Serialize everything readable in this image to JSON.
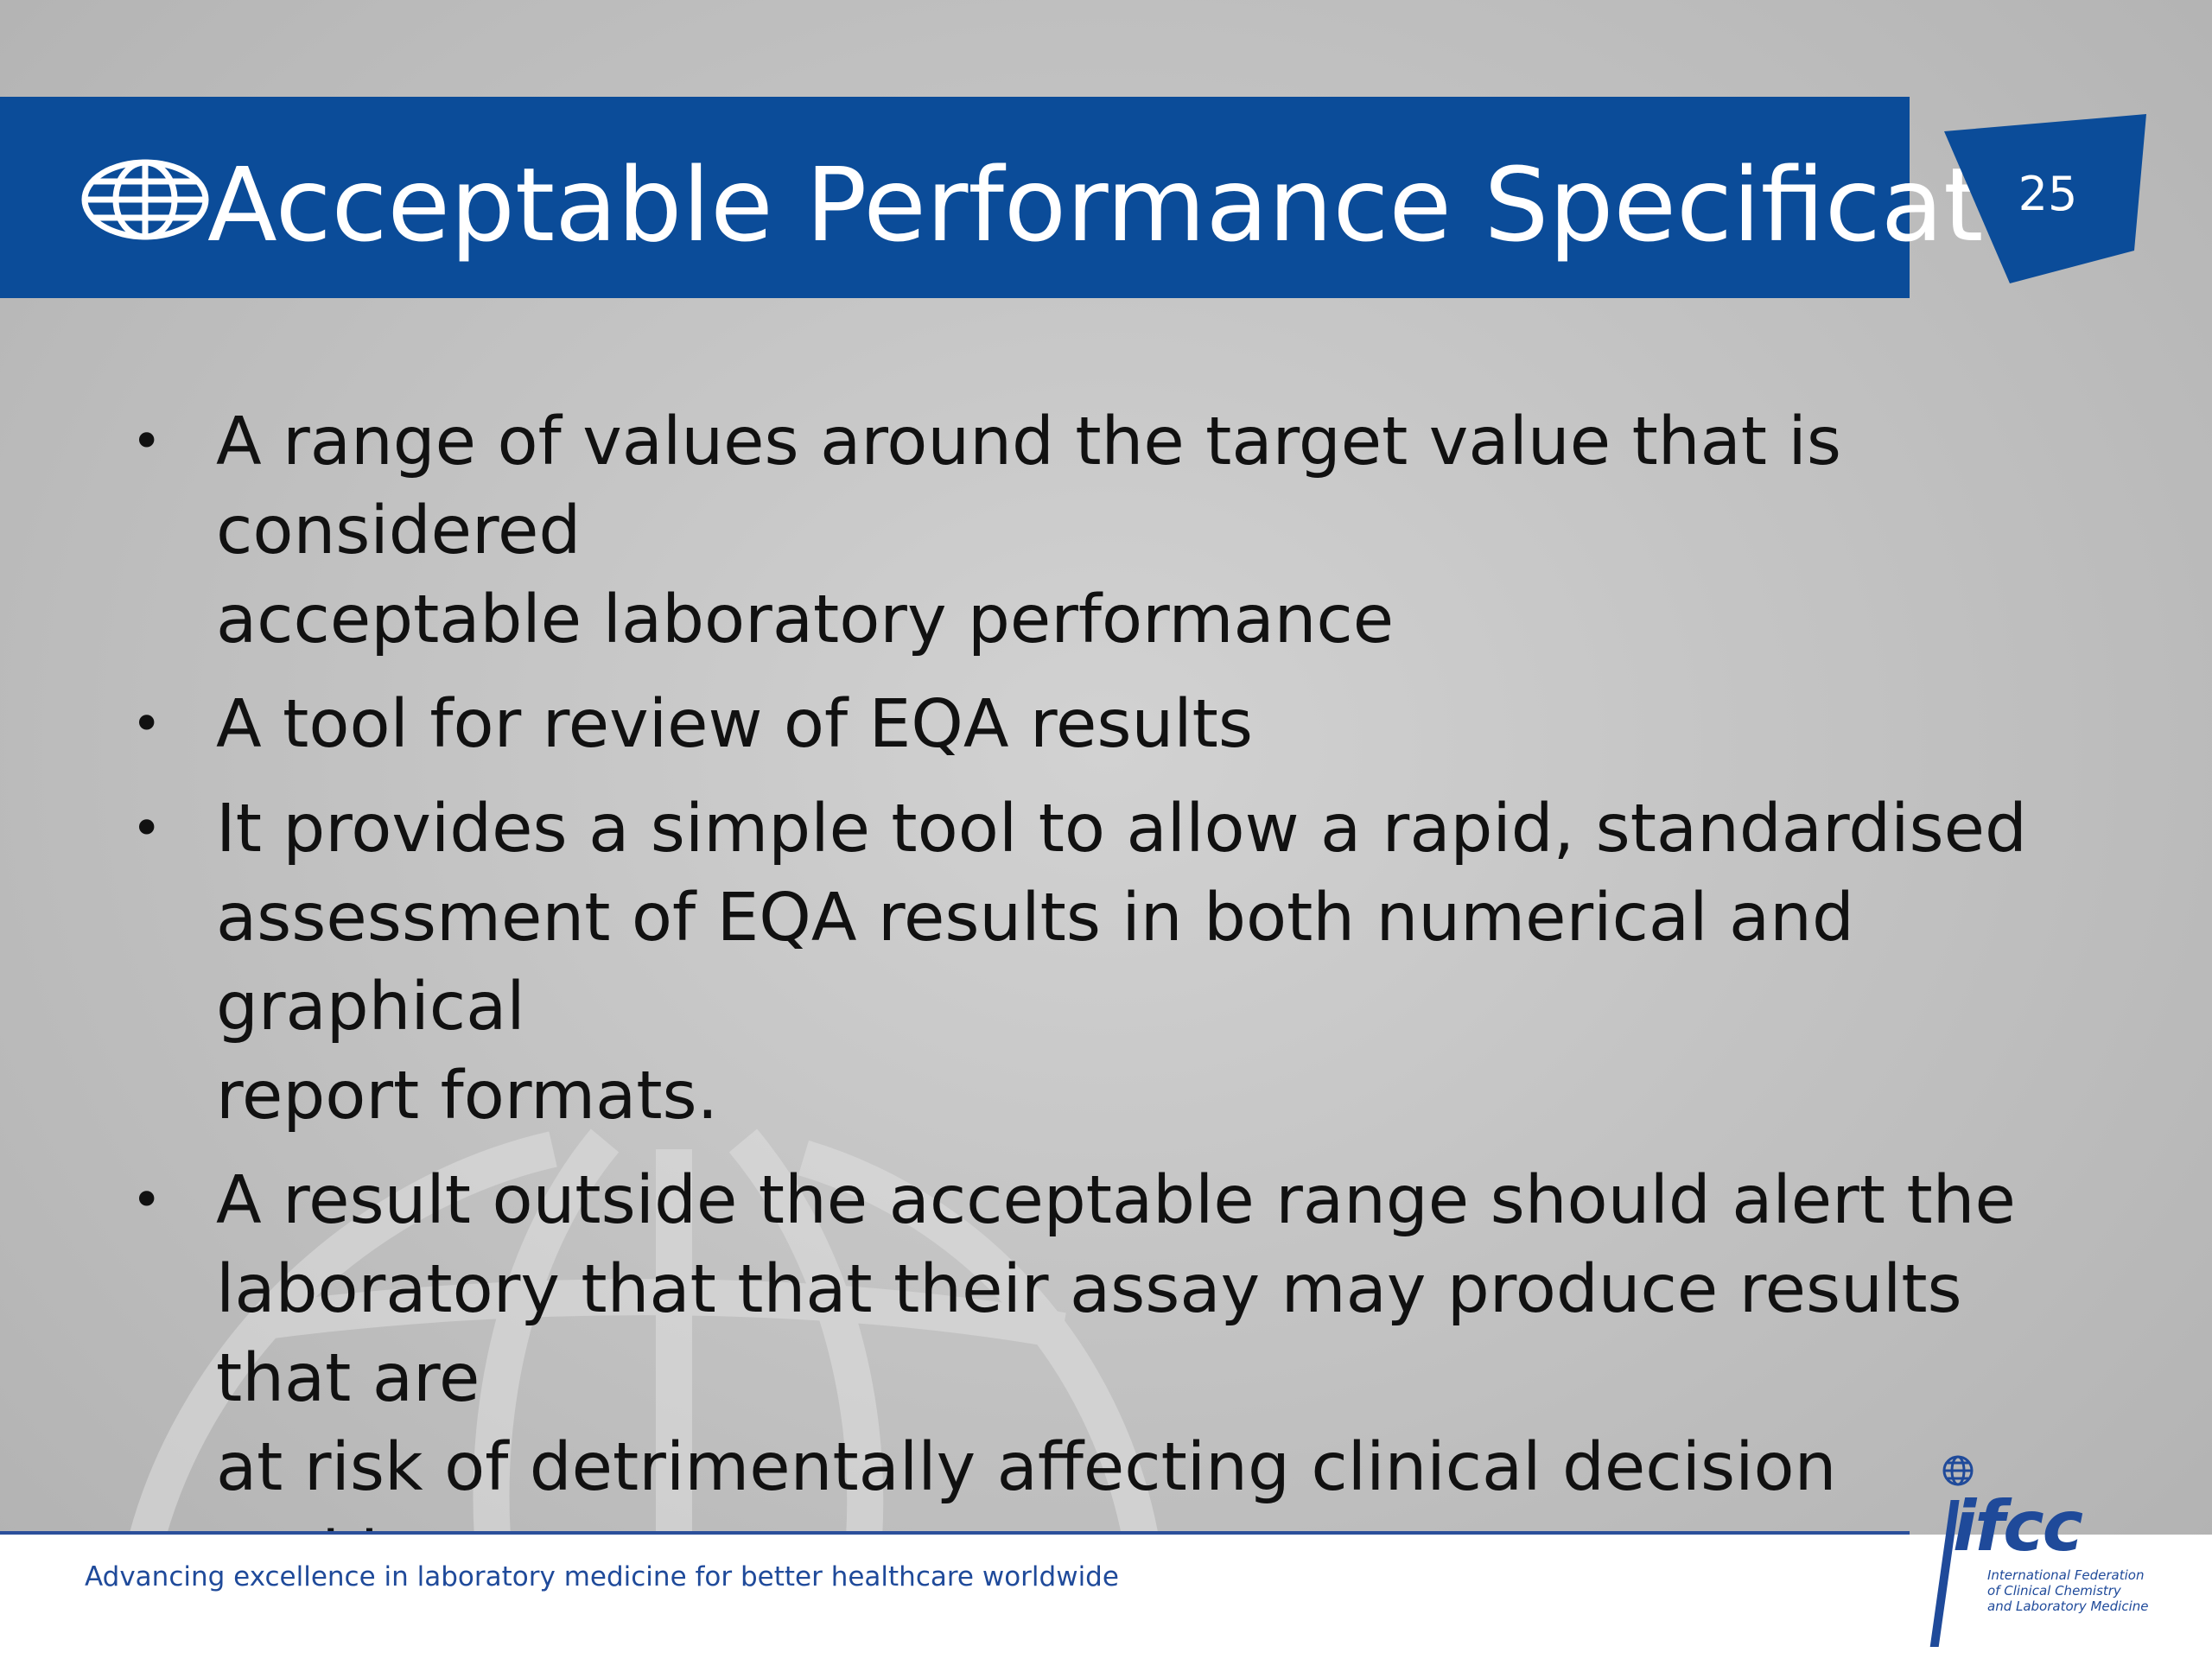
{
  "slide": {
    "title": "Acceptable Performance Specification",
    "page_number": "25",
    "bullets": [
      {
        "line1": "A range of values around the target value that is considered",
        "line2": "acceptable laboratory performance",
        "line3": ""
      },
      {
        "line1": "A tool for review of EQA results",
        "line2": "",
        "line3": ""
      },
      {
        "line1": "It provides a simple tool to allow a rapid, standardised",
        "line2": "assessment of EQA results in both numerical and graphical",
        "line3": "report formats."
      },
      {
        "line1": "A result outside the acceptable range should alert the",
        "line2": "laboratory that that their assay may produce results that are",
        "line3": "at risk of detrimentally affecting clinical decision making."
      }
    ],
    "footer_text": "Advancing excellence in laboratory medicine for better healthcare worldwide"
  },
  "logo": {
    "abbreviation": "ifcc",
    "line1": "International Federation",
    "line2": "of Clinical Chemistry",
    "line3": "and Laboratory Medicine"
  },
  "colors": {
    "title_bar": "#0b4c99",
    "badge": "#0b4c99",
    "footer_text": "#1f4a9a",
    "background": "#c3c3c3"
  },
  "icons": {
    "title_icon": "globe-icon",
    "logo_icon": "globe-icon",
    "badge_shape": "slanted-quadrilateral"
  }
}
